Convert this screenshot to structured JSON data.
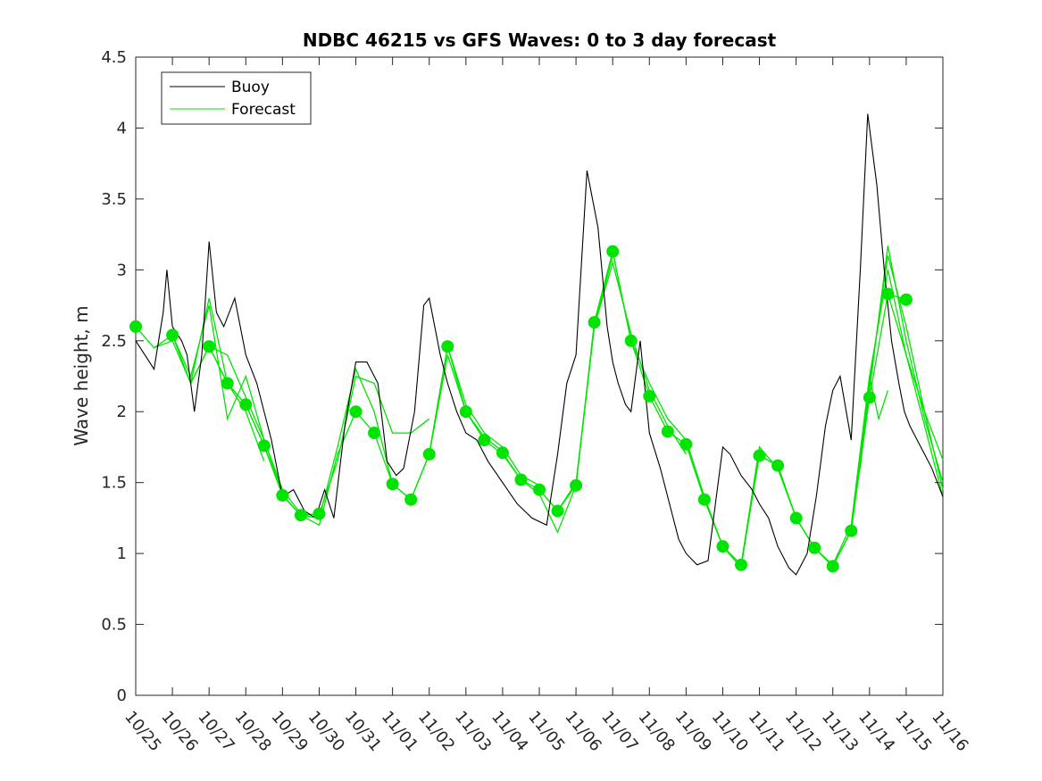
{
  "chart_data": {
    "type": "line",
    "title": "NDBC 46215 vs GFS Waves: 0 to 3 day forecast",
    "xlabel": "",
    "ylabel": "Wave height, m",
    "xlim": [
      0,
      22
    ],
    "ylim": [
      0,
      4.5
    ],
    "yticks": [
      0,
      0.5,
      1,
      1.5,
      2,
      2.5,
      3,
      3.5,
      4,
      4.5
    ],
    "ytick_labels": [
      "0",
      "0.5",
      "1",
      "1.5",
      "2",
      "2.5",
      "3",
      "3.5",
      "4",
      "4.5"
    ],
    "xtick_labels": [
      "10/25",
      "10/26",
      "10/27",
      "10/28",
      "10/29",
      "10/30",
      "10/31",
      "11/01",
      "11/02",
      "11/03",
      "11/04",
      "11/05",
      "11/06",
      "11/07",
      "11/08",
      "11/09",
      "11/10",
      "11/11",
      "11/12",
      "11/13",
      "11/14",
      "11/15",
      "11/16"
    ],
    "legend": {
      "location": "top-left",
      "entries": [
        "Buoy",
        "Forecast"
      ]
    },
    "colors": {
      "buoy": "#000000",
      "forecast": "#00e400",
      "marker": "#00e400"
    },
    "buoy_series": {
      "name": "Buoy",
      "x": [
        0,
        0.25,
        0.5,
        0.75,
        0.85,
        1.0,
        1.25,
        1.4,
        1.6,
        1.8,
        2.0,
        2.2,
        2.4,
        2.7,
        3.0,
        3.3,
        3.5,
        3.7,
        4.0,
        4.3,
        4.6,
        4.9,
        5.15,
        5.4,
        5.7,
        6.0,
        6.3,
        6.6,
        6.85,
        7.1,
        7.3,
        7.6,
        7.85,
        8.0,
        8.3,
        8.5,
        8.75,
        9.0,
        9.3,
        9.6,
        10.0,
        10.4,
        10.8,
        11.2,
        11.5,
        11.75,
        12.0,
        12.3,
        12.6,
        12.85,
        13.0,
        13.15,
        13.35,
        13.5,
        13.75,
        14.0,
        14.3,
        14.5,
        14.8,
        15.0,
        15.3,
        15.6,
        15.85,
        16.0,
        16.2,
        16.5,
        16.8,
        17.0,
        17.25,
        17.5,
        17.8,
        18.0,
        18.3,
        18.55,
        18.8,
        19.0,
        19.2,
        19.5,
        19.75,
        19.95,
        20.2,
        20.4,
        20.6,
        20.8,
        20.95,
        21.1,
        21.3,
        21.5,
        21.7,
        22.0
      ],
      "y": [
        2.5,
        2.4,
        2.3,
        2.7,
        3.0,
        2.6,
        2.5,
        2.4,
        2.0,
        2.4,
        3.2,
        2.7,
        2.6,
        2.8,
        2.4,
        2.2,
        2.0,
        1.8,
        1.4,
        1.45,
        1.3,
        1.25,
        1.45,
        1.25,
        1.9,
        2.35,
        2.35,
        2.2,
        1.65,
        1.55,
        1.6,
        2.0,
        2.75,
        2.8,
        2.4,
        2.2,
        2.0,
        1.85,
        1.8,
        1.65,
        1.5,
        1.35,
        1.25,
        1.2,
        1.7,
        2.2,
        2.4,
        3.7,
        3.3,
        2.6,
        2.35,
        2.2,
        2.05,
        2.0,
        2.5,
        1.85,
        1.6,
        1.4,
        1.1,
        1.0,
        0.92,
        0.95,
        1.45,
        1.75,
        1.7,
        1.55,
        1.45,
        1.35,
        1.25,
        1.05,
        0.9,
        0.85,
        1.0,
        1.4,
        1.9,
        2.15,
        2.25,
        1.8,
        3.0,
        4.1,
        3.6,
        3.0,
        2.5,
        2.2,
        2.0,
        1.9,
        1.8,
        1.7,
        1.6,
        1.4
      ]
    },
    "forecast_markers": {
      "name": "Forecast",
      "x": [
        0,
        1,
        2,
        2.5,
        3,
        3.5,
        4,
        4.5,
        5,
        6,
        6.5,
        7,
        7.5,
        8,
        8.5,
        9,
        9.5,
        10,
        10.5,
        11,
        11.5,
        12,
        12.5,
        13,
        13.5,
        14,
        14.5,
        15,
        15.5,
        16,
        16.5,
        17,
        17.5,
        18,
        18.5,
        19,
        19.5,
        20,
        20.5,
        21
      ],
      "y": [
        2.6,
        2.54,
        2.46,
        2.2,
        2.05,
        1.76,
        1.41,
        1.27,
        1.28,
        2.0,
        1.85,
        1.49,
        1.38,
        1.7,
        2.46,
        2.0,
        1.8,
        1.71,
        1.52,
        1.45,
        1.3,
        1.48,
        2.63,
        3.13,
        2.5,
        2.11,
        1.86,
        1.77,
        1.38,
        1.05,
        0.92,
        1.69,
        1.62,
        1.25,
        1.04,
        0.91,
        1.16,
        2.1,
        2.83,
        2.79
      ]
    },
    "forecast_runs": [
      {
        "x": [
          0,
          0.5,
          1,
          1.5,
          2,
          2.5,
          3
        ],
        "y": [
          2.6,
          2.45,
          2.54,
          2.2,
          2.46,
          2.2,
          2.05
        ]
      },
      {
        "x": [
          0.5,
          1,
          1.5,
          2,
          2.5,
          3,
          3.5
        ],
        "y": [
          2.45,
          2.5,
          2.2,
          2.8,
          2.2,
          2.0,
          1.65
        ]
      },
      {
        "x": [
          1,
          1.5,
          2,
          2.5,
          3,
          3.5,
          4
        ],
        "y": [
          2.54,
          2.25,
          2.75,
          1.95,
          2.25,
          1.8,
          1.42
        ]
      },
      {
        "x": [
          1.5,
          2,
          2.5,
          3,
          3.5,
          4,
          4.5
        ],
        "y": [
          2.2,
          2.46,
          2.4,
          2.1,
          1.8,
          1.45,
          1.28
        ]
      },
      {
        "x": [
          2,
          2.5,
          3,
          3.5,
          4,
          4.5,
          5
        ],
        "y": [
          2.46,
          2.2,
          2.05,
          1.76,
          1.41,
          1.27,
          1.28
        ]
      },
      {
        "x": [
          3,
          3.5,
          4,
          4.5,
          5,
          5.5,
          6
        ],
        "y": [
          2.05,
          1.76,
          1.41,
          1.27,
          1.2,
          1.7,
          2.0
        ]
      },
      {
        "x": [
          4,
          4.5,
          5,
          5.5,
          6,
          6.5,
          7
        ],
        "y": [
          1.41,
          1.27,
          1.25,
          1.75,
          2.3,
          2.0,
          1.49
        ]
      },
      {
        "x": [
          5,
          5.5,
          6,
          6.5,
          7,
          7.5,
          8
        ],
        "y": [
          1.28,
          1.65,
          2.25,
          2.2,
          1.85,
          1.85,
          1.95
        ]
      },
      {
        "x": [
          6,
          6.5,
          7,
          7.5,
          8,
          8.5,
          9
        ],
        "y": [
          2.0,
          1.85,
          1.49,
          1.38,
          1.7,
          2.46,
          2.0
        ]
      },
      {
        "x": [
          7,
          7.5,
          8,
          8.5,
          9,
          9.5,
          10
        ],
        "y": [
          1.49,
          1.38,
          1.7,
          2.4,
          2.0,
          1.82,
          1.72
        ]
      },
      {
        "x": [
          8,
          8.5,
          9,
          9.5,
          10,
          10.5,
          11
        ],
        "y": [
          1.7,
          2.46,
          2.05,
          1.85,
          1.75,
          1.55,
          1.48
        ]
      },
      {
        "x": [
          9,
          9.5,
          10,
          10.5,
          11,
          11.5,
          12
        ],
        "y": [
          2.0,
          1.8,
          1.7,
          1.52,
          1.42,
          1.15,
          1.48
        ]
      },
      {
        "x": [
          10,
          10.5,
          11,
          11.5,
          12,
          12.5,
          13
        ],
        "y": [
          1.71,
          1.52,
          1.45,
          1.3,
          1.5,
          2.6,
          3.1
        ]
      },
      {
        "x": [
          11,
          11.5,
          12,
          12.5,
          13,
          13.5,
          14
        ],
        "y": [
          1.45,
          1.3,
          1.48,
          2.63,
          3.13,
          2.5,
          2.11
        ]
      },
      {
        "x": [
          12,
          12.5,
          13,
          13.5,
          14,
          14.5,
          15
        ],
        "y": [
          1.48,
          2.6,
          3.05,
          2.55,
          2.15,
          1.9,
          1.7
        ]
      },
      {
        "x": [
          13,
          13.5,
          14,
          14.5,
          15,
          15.5,
          16
        ],
        "y": [
          3.13,
          2.5,
          2.2,
          1.95,
          1.8,
          1.4,
          1.05
        ]
      },
      {
        "x": [
          14,
          14.5,
          15,
          15.5,
          16,
          16.5,
          17
        ],
        "y": [
          2.11,
          1.86,
          1.77,
          1.38,
          1.05,
          0.9,
          1.72
        ]
      },
      {
        "x": [
          15,
          15.5,
          16,
          16.5,
          17,
          17.5,
          18
        ],
        "y": [
          1.77,
          1.38,
          1.05,
          0.92,
          1.75,
          1.6,
          1.25
        ]
      },
      {
        "x": [
          16,
          16.5,
          17,
          17.5,
          18,
          18.5,
          19
        ],
        "y": [
          1.05,
          0.92,
          1.69,
          1.62,
          1.25,
          1.04,
          0.91
        ]
      },
      {
        "x": [
          17,
          17.5,
          18,
          18.5,
          19,
          19.5,
          20
        ],
        "y": [
          1.69,
          1.62,
          1.25,
          1.04,
          0.92,
          1.2,
          2.25
        ]
      },
      {
        "x": [
          18,
          18.5,
          19,
          19.5,
          20,
          20.5,
          21
        ],
        "y": [
          1.25,
          1.04,
          0.91,
          1.16,
          2.1,
          2.83,
          2.79
        ]
      },
      {
        "x": [
          19,
          19.5,
          20,
          20.5,
          21,
          21.5,
          22
        ],
        "y": [
          0.91,
          1.16,
          2.2,
          3.1,
          2.6,
          2.0,
          1.45
        ]
      },
      {
        "x": [
          19.5,
          20,
          20.5,
          21,
          21.5,
          22
        ],
        "y": [
          1.16,
          2.15,
          3.17,
          2.5,
          1.95,
          1.5
        ]
      },
      {
        "x": [
          20,
          20.5,
          21,
          21.5,
          22
        ],
        "y": [
          2.25,
          3.0,
          2.4,
          2.0,
          1.66
        ]
      },
      {
        "x": [
          20.5,
          21,
          21.5,
          22
        ],
        "y": [
          2.83,
          2.4,
          1.9,
          1.4
        ]
      },
      {
        "x": [
          19.75,
          20,
          20.25,
          20.5
        ],
        "y": [
          1.6,
          2.25,
          1.95,
          2.15
        ]
      }
    ]
  }
}
